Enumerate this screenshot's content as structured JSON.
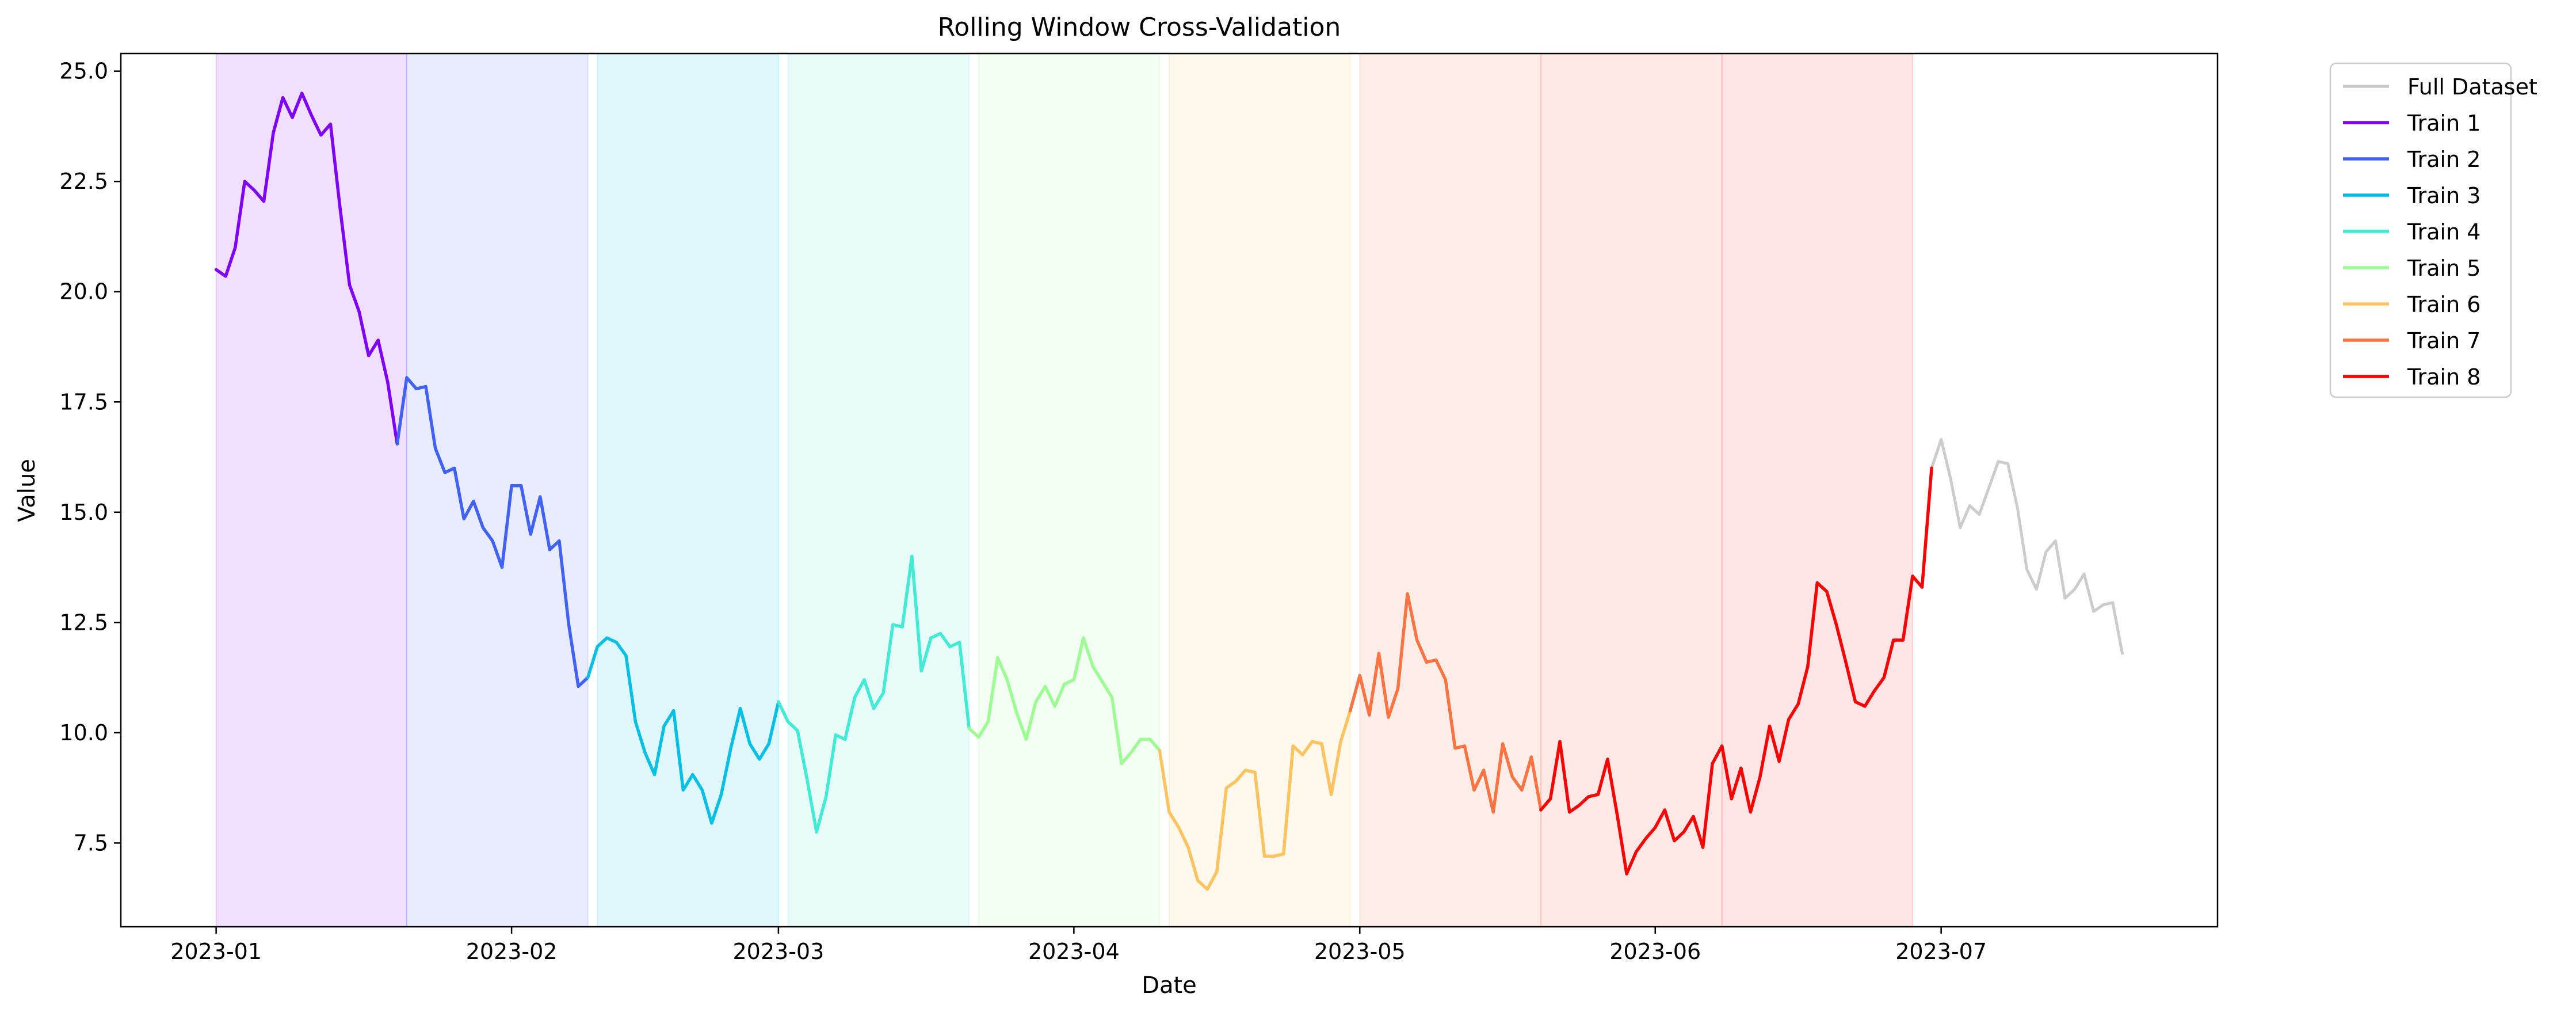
{
  "chart_data": {
    "type": "line",
    "title": "Rolling Window Cross-Validation",
    "xlabel": "Date",
    "ylabel": "Value",
    "xlim": [
      "2022-12-22",
      "2023-07-30"
    ],
    "ylim": [
      5.6,
      25.4
    ],
    "x_ticks": [
      "2023-01-01",
      "2023-02-01",
      "2023-03-01",
      "2023-04-01",
      "2023-05-01",
      "2023-06-01",
      "2023-07-01"
    ],
    "x_tick_labels": [
      "2023-01",
      "2023-02",
      "2023-03",
      "2023-04",
      "2023-05",
      "2023-06",
      "2023-07"
    ],
    "y_ticks": [
      7.5,
      10.0,
      12.5,
      15.0,
      17.5,
      20.0,
      22.5,
      25.0
    ],
    "y_tick_labels": [
      "7.5",
      "10.0",
      "12.5",
      "15.0",
      "17.5",
      "20.0",
      "22.5",
      "25.0"
    ],
    "grid": false,
    "legend": {
      "placement": "outside-top-right",
      "entries": [
        {
          "label": "Full Dataset",
          "color": "#cccccc"
        },
        {
          "label": "Train 1",
          "color": "#8000ff"
        },
        {
          "label": "Train 2",
          "color": "#4062fa"
        },
        {
          "label": "Train 3",
          "color": "#00c0e6"
        },
        {
          "label": "Train 4",
          "color": "#40ecd4"
        },
        {
          "label": "Train 5",
          "color": "#9dff93"
        },
        {
          "label": "Train 6",
          "color": "#ffc35f"
        },
        {
          "label": "Train 7",
          "color": "#ff7442"
        },
        {
          "label": "Train 8",
          "color": "#ff0000"
        }
      ]
    },
    "windows": [
      {
        "start": "2023-01-01",
        "end": "2023-01-21",
        "color": "#8000ff"
      },
      {
        "start": "2023-01-21",
        "end": "2023-02-09",
        "color": "#4062fa"
      },
      {
        "start": "2023-02-10",
        "end": "2023-03-01",
        "color": "#00c0e6"
      },
      {
        "start": "2023-03-02",
        "end": "2023-03-21",
        "color": "#40ecd4"
      },
      {
        "start": "2023-03-22",
        "end": "2023-04-10",
        "color": "#9dff93"
      },
      {
        "start": "2023-04-11",
        "end": "2023-04-30",
        "color": "#ffc35f"
      },
      {
        "start": "2023-05-01",
        "end": "2023-05-20",
        "color": "#ff7442"
      },
      {
        "start": "2023-05-20",
        "end": "2023-06-08",
        "color": "#ff4d2e"
      },
      {
        "start": "2023-06-08",
        "end": "2023-06-28",
        "color": "#ff2a2a"
      }
    ],
    "start_date": "2023-01-01",
    "series": [
      {
        "name": "Full Dataset",
        "color": "#cccccc",
        "start_index": 0,
        "values": [
          20.5,
          20.35,
          21.0,
          22.5,
          22.3,
          22.05,
          23.6,
          24.4,
          23.95,
          24.5,
          24.0,
          23.55,
          23.8,
          21.9,
          20.15,
          19.55,
          18.55,
          18.9,
          17.95,
          16.55,
          18.05,
          17.8,
          17.85,
          16.45,
          15.9,
          16.0,
          14.85,
          15.25,
          14.65,
          14.35,
          13.75,
          15.6,
          15.6,
          14.5,
          15.35,
          14.15,
          14.35,
          12.45,
          11.05,
          11.25,
          11.95,
          12.15,
          12.05,
          11.75,
          10.25,
          9.55,
          9.05,
          10.15,
          10.5,
          8.7,
          9.05,
          8.7,
          7.95,
          8.6,
          9.65,
          10.55,
          9.75,
          9.4,
          9.75,
          10.7,
          10.25,
          10.05,
          8.95,
          7.75,
          8.55,
          9.95,
          9.85,
          10.8,
          11.2,
          10.55,
          10.9,
          12.45,
          12.4,
          14.0,
          11.4,
          12.15,
          12.25,
          11.95,
          12.05,
          10.1,
          9.9,
          10.25,
          11.7,
          11.2,
          10.45,
          9.85,
          10.7,
          11.05,
          10.6,
          11.1,
          11.2,
          12.15,
          11.5,
          11.15,
          10.8,
          9.3,
          9.55,
          9.85,
          9.85,
          9.6,
          8.2,
          7.85,
          7.4,
          6.65,
          6.45,
          6.85,
          8.75,
          8.9,
          9.15,
          9.1,
          7.2,
          7.2,
          7.25,
          9.7,
          9.5,
          9.8,
          9.75,
          8.6,
          9.8,
          10.5,
          11.3,
          10.4,
          11.8,
          10.35,
          11.0,
          13.15,
          12.1,
          11.6,
          11.65,
          11.2,
          9.65,
          9.7,
          8.7,
          9.15,
          8.2,
          9.75,
          9.0,
          8.7,
          9.45,
          8.25,
          8.5,
          9.8,
          8.2,
          8.35,
          8.55,
          8.6,
          9.4,
          8.15,
          6.8,
          7.3,
          7.6,
          7.85,
          8.25,
          7.55,
          7.75,
          8.1,
          7.4,
          9.3,
          9.7,
          8.5,
          9.2,
          8.2,
          9.0,
          10.15,
          9.35,
          10.3,
          10.65,
          11.5,
          13.4,
          13.2,
          12.45,
          11.6,
          10.7,
          10.6,
          10.95,
          11.25,
          12.1,
          12.1,
          13.55,
          13.3,
          16.0,
          16.65,
          15.75,
          14.65,
          15.15,
          14.95,
          15.55,
          16.15,
          16.1,
          15.1,
          13.7,
          13.25,
          14.1,
          14.35,
          13.05,
          13.25,
          13.6,
          12.75,
          12.9,
          12.95,
          11.8
        ]
      },
      {
        "name": "Train 1",
        "color": "#8000ff",
        "start_index": 0,
        "values": [
          20.5,
          20.35,
          21.0,
          22.5,
          22.3,
          22.05,
          23.6,
          24.4,
          23.95,
          24.5,
          24.0,
          23.55,
          23.8,
          21.9,
          20.15,
          19.55,
          18.55,
          18.9,
          17.95,
          16.55
        ]
      },
      {
        "name": "Train 2",
        "color": "#4062fa",
        "start_index": 19,
        "values": [
          16.55,
          18.05,
          17.8,
          17.85,
          16.45,
          15.9,
          16.0,
          14.85,
          15.25,
          14.65,
          14.35,
          13.75,
          15.6,
          15.6,
          14.5,
          15.35,
          14.15,
          14.35,
          12.45,
          11.05,
          11.25
        ]
      },
      {
        "name": "Train 3",
        "color": "#00c0e6",
        "start_index": 39,
        "values": [
          11.25,
          11.95,
          12.15,
          12.05,
          11.75,
          10.25,
          9.55,
          9.05,
          10.15,
          10.5,
          8.7,
          9.05,
          8.7,
          7.95,
          8.6,
          9.65,
          10.55,
          9.75,
          9.4,
          9.75,
          10.7
        ]
      },
      {
        "name": "Train 4",
        "color": "#40ecd4",
        "start_index": 59,
        "values": [
          10.7,
          10.25,
          10.05,
          8.95,
          7.75,
          8.55,
          9.95,
          9.85,
          10.8,
          11.2,
          10.55,
          10.9,
          12.45,
          12.4,
          14.0,
          11.4,
          12.15,
          12.25,
          11.95,
          12.05,
          10.1
        ]
      },
      {
        "name": "Train 5",
        "color": "#9dff93",
        "start_index": 79,
        "values": [
          10.1,
          9.9,
          10.25,
          11.7,
          11.2,
          10.45,
          9.85,
          10.7,
          11.05,
          10.6,
          11.1,
          11.2,
          12.15,
          11.5,
          11.15,
          10.8,
          9.3,
          9.55,
          9.85,
          9.85,
          9.6
        ]
      },
      {
        "name": "Train 6",
        "color": "#ffc35f",
        "start_index": 99,
        "values": [
          9.6,
          8.2,
          7.85,
          7.4,
          6.65,
          6.45,
          6.85,
          8.75,
          8.9,
          9.15,
          9.1,
          7.2,
          7.2,
          7.25,
          9.7,
          9.5,
          9.8,
          9.75,
          8.6,
          9.8,
          10.5
        ]
      },
      {
        "name": "Train 7",
        "color": "#ff7442",
        "start_index": 119,
        "values": [
          10.5,
          11.3,
          10.4,
          11.8,
          10.35,
          11.0,
          13.15,
          12.1,
          11.6,
          11.65,
          11.2,
          9.65,
          9.7,
          8.7,
          9.15,
          8.2,
          9.75,
          9.0,
          8.7,
          9.45,
          8.25
        ]
      },
      {
        "name": "Train 8",
        "color": "#ff0000",
        "start_index": 139,
        "values": [
          8.25,
          8.5,
          9.8,
          8.2,
          8.35,
          8.55,
          8.6,
          9.4,
          8.15,
          6.8,
          7.3,
          7.6,
          7.85,
          8.25,
          7.55,
          7.75,
          8.1,
          7.4,
          9.3,
          9.7,
          8.5,
          9.2,
          8.2,
          9.0,
          10.15,
          9.35,
          10.3,
          10.65,
          11.5,
          13.4,
          13.2,
          12.45,
          11.6,
          10.7,
          10.6,
          10.95,
          11.25,
          12.1,
          12.1,
          13.55,
          13.3,
          16.0
        ]
      }
    ]
  }
}
